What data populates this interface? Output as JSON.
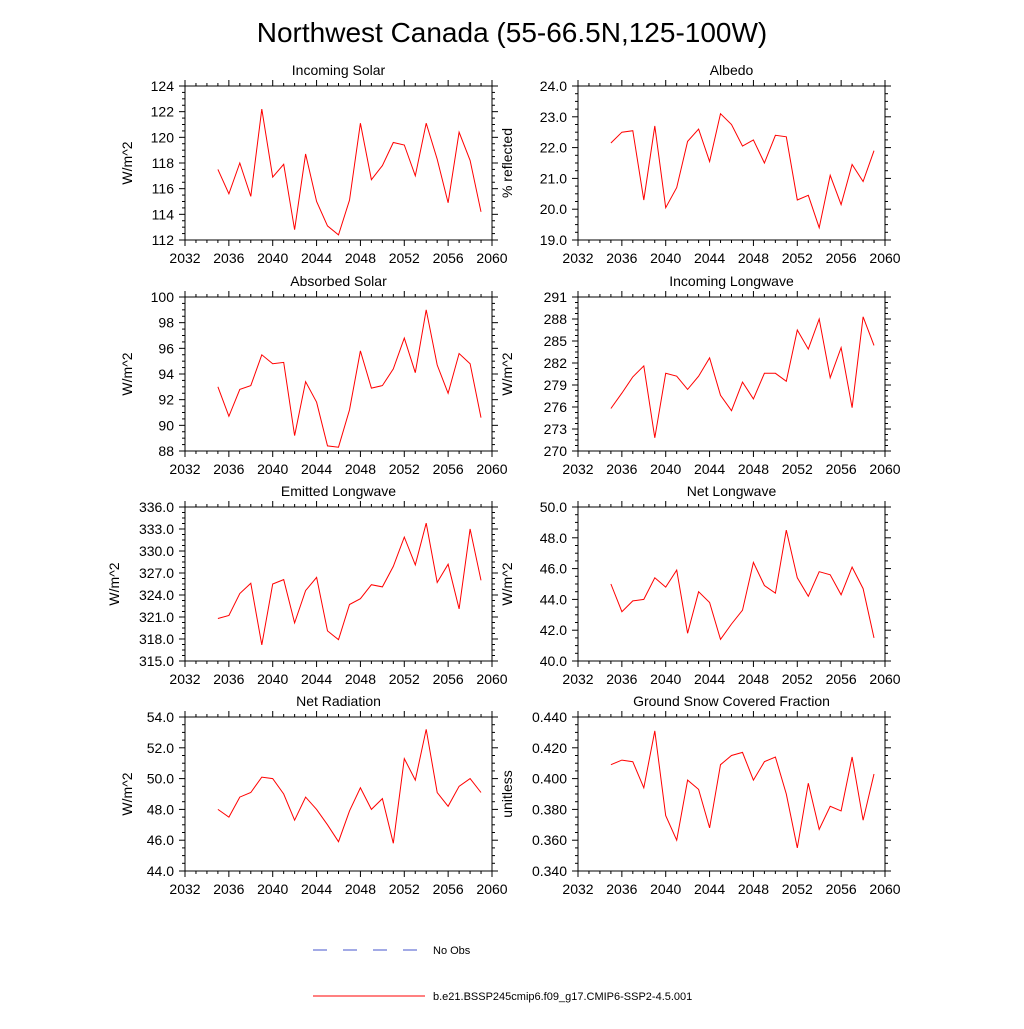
{
  "title": "Northwest Canada (55-66.5N,125-100W)",
  "colors": {
    "model": "#ff0000",
    "obs": "#4455cc",
    "axis": "#000000"
  },
  "legend": [
    {
      "label": "No Obs",
      "style": "dashed",
      "color": "#4455cc"
    },
    {
      "label": "b.e21.BSSP245cmip6.f09_g17.CMIP6-SSP2-4.5.001",
      "style": "solid",
      "color": "#ff0000"
    }
  ],
  "chart_data": [
    {
      "type": "line",
      "title": "Incoming Solar",
      "ylabel": "W/m^2",
      "xlim": [
        2032,
        2060
      ],
      "xticks": [
        "2032",
        "2036",
        "2040",
        "2044",
        "2048",
        "2052",
        "2056",
        "2060"
      ],
      "ylim": [
        112,
        124
      ],
      "yticks": [
        "112",
        "114",
        "116",
        "118",
        "120",
        "122",
        "124"
      ],
      "x": [
        2035,
        2036,
        2037,
        2038,
        2039,
        2040,
        2041,
        2042,
        2043,
        2044,
        2045,
        2046,
        2047,
        2048,
        2049,
        2050,
        2051,
        2052,
        2053,
        2054,
        2055,
        2056,
        2057,
        2058,
        2059
      ],
      "series": [
        {
          "values": [
            117.5,
            115.6,
            118.0,
            115.4,
            122.2,
            116.9,
            117.9,
            112.8,
            118.7,
            115.0,
            113.1,
            112.4,
            115.1,
            121.1,
            116.7,
            117.8,
            119.6,
            119.4,
            117.0,
            121.1,
            118.3,
            114.9,
            120.4,
            118.2,
            114.2
          ]
        }
      ]
    },
    {
      "type": "line",
      "title": "Albedo",
      "ylabel": "% reflected",
      "xlim": [
        2032,
        2060
      ],
      "xticks": [
        "2032",
        "2036",
        "2040",
        "2044",
        "2048",
        "2052",
        "2056",
        "2060"
      ],
      "ylim": [
        19.0,
        24.0
      ],
      "yticks": [
        "19.0",
        "20.0",
        "21.0",
        "22.0",
        "23.0",
        "24.0"
      ],
      "x": [
        2035,
        2036,
        2037,
        2038,
        2039,
        2040,
        2041,
        2042,
        2043,
        2044,
        2045,
        2046,
        2047,
        2048,
        2049,
        2050,
        2051,
        2052,
        2053,
        2054,
        2055,
        2056,
        2057,
        2058,
        2059
      ],
      "series": [
        {
          "values": [
            22.15,
            22.5,
            22.55,
            20.3,
            22.7,
            20.05,
            20.7,
            22.2,
            22.6,
            21.55,
            23.1,
            22.75,
            22.05,
            22.25,
            21.5,
            22.4,
            22.35,
            20.3,
            20.45,
            19.4,
            21.1,
            20.15,
            21.45,
            20.9,
            21.9
          ]
        }
      ]
    },
    {
      "type": "line",
      "title": "Absorbed Solar",
      "ylabel": "W/m^2",
      "xlim": [
        2032,
        2060
      ],
      "xticks": [
        "2032",
        "2036",
        "2040",
        "2044",
        "2048",
        "2052",
        "2056",
        "2060"
      ],
      "ylim": [
        88,
        100
      ],
      "yticks": [
        "88",
        "90",
        "92",
        "94",
        "96",
        "98",
        "100"
      ],
      "x": [
        2035,
        2036,
        2037,
        2038,
        2039,
        2040,
        2041,
        2042,
        2043,
        2044,
        2045,
        2046,
        2047,
        2048,
        2049,
        2050,
        2051,
        2052,
        2053,
        2054,
        2055,
        2056,
        2057,
        2058,
        2059
      ],
      "series": [
        {
          "values": [
            93.0,
            90.7,
            92.8,
            93.1,
            95.5,
            94.8,
            94.9,
            89.2,
            93.4,
            91.8,
            88.4,
            88.3,
            91.2,
            95.8,
            92.9,
            93.1,
            94.4,
            96.8,
            94.1,
            99.0,
            94.7,
            92.5,
            95.6,
            94.8,
            90.6
          ]
        }
      ]
    },
    {
      "type": "line",
      "title": "Incoming Longwave",
      "ylabel": "W/m^2",
      "xlim": [
        2032,
        2060
      ],
      "xticks": [
        "2032",
        "2036",
        "2040",
        "2044",
        "2048",
        "2052",
        "2056",
        "2060"
      ],
      "ylim": [
        270,
        291
      ],
      "yticks": [
        "270",
        "273",
        "276",
        "279",
        "282",
        "285",
        "288",
        "291"
      ],
      "x": [
        2035,
        2036,
        2037,
        2038,
        2039,
        2040,
        2041,
        2042,
        2043,
        2044,
        2045,
        2046,
        2047,
        2048,
        2049,
        2050,
        2051,
        2052,
        2053,
        2054,
        2055,
        2056,
        2057,
        2058,
        2059
      ],
      "series": [
        {
          "values": [
            275.8,
            277.9,
            280.1,
            281.6,
            271.8,
            280.6,
            280.2,
            278.4,
            280.2,
            282.7,
            277.6,
            275.5,
            279.4,
            277.1,
            280.6,
            280.6,
            279.5,
            286.5,
            283.9,
            288.0,
            280.0,
            284.1,
            275.9,
            288.3,
            284.4
          ]
        }
      ]
    },
    {
      "type": "line",
      "title": "Emitted Longwave",
      "ylabel": "W/m^2",
      "xlim": [
        2032,
        2060
      ],
      "xticks": [
        "2032",
        "2036",
        "2040",
        "2044",
        "2048",
        "2052",
        "2056",
        "2060"
      ],
      "ylim": [
        315.0,
        336.0
      ],
      "yticks": [
        "315.0",
        "318.0",
        "321.0",
        "324.0",
        "327.0",
        "330.0",
        "333.0",
        "336.0"
      ],
      "x": [
        2035,
        2036,
        2037,
        2038,
        2039,
        2040,
        2041,
        2042,
        2043,
        2044,
        2045,
        2046,
        2047,
        2048,
        2049,
        2050,
        2051,
        2052,
        2053,
        2054,
        2055,
        2056,
        2057,
        2058,
        2059
      ],
      "series": [
        {
          "values": [
            320.8,
            321.2,
            324.2,
            325.6,
            317.2,
            325.5,
            326.1,
            320.2,
            324.6,
            326.4,
            319.1,
            317.9,
            322.7,
            323.5,
            325.4,
            325.1,
            327.9,
            331.9,
            328.1,
            333.8,
            325.7,
            328.2,
            322.1,
            333.0,
            326.0
          ]
        }
      ]
    },
    {
      "type": "line",
      "title": "Net Longwave",
      "ylabel": "W/m^2",
      "xlim": [
        2032,
        2060
      ],
      "xticks": [
        "2032",
        "2036",
        "2040",
        "2044",
        "2048",
        "2052",
        "2056",
        "2060"
      ],
      "ylim": [
        40.0,
        50.0
      ],
      "yticks": [
        "40.0",
        "42.0",
        "44.0",
        "46.0",
        "48.0",
        "50.0"
      ],
      "x": [
        2035,
        2036,
        2037,
        2038,
        2039,
        2040,
        2041,
        2042,
        2043,
        2044,
        2045,
        2046,
        2047,
        2048,
        2049,
        2050,
        2051,
        2052,
        2053,
        2054,
        2055,
        2056,
        2057,
        2058,
        2059
      ],
      "series": [
        {
          "values": [
            45.0,
            43.2,
            43.9,
            44.0,
            45.4,
            44.8,
            45.9,
            41.8,
            44.5,
            43.8,
            41.4,
            42.4,
            43.3,
            46.4,
            44.9,
            44.4,
            48.5,
            45.4,
            44.2,
            45.8,
            45.6,
            44.3,
            46.1,
            44.7,
            41.5
          ]
        }
      ]
    },
    {
      "type": "line",
      "title": "Net Radiation",
      "ylabel": "W/m^2",
      "xlim": [
        2032,
        2060
      ],
      "xticks": [
        "2032",
        "2036",
        "2040",
        "2044",
        "2048",
        "2052",
        "2056",
        "2060"
      ],
      "ylim": [
        44.0,
        54.0
      ],
      "yticks": [
        "44.0",
        "46.0",
        "48.0",
        "50.0",
        "52.0",
        "54.0"
      ],
      "x": [
        2035,
        2036,
        2037,
        2038,
        2039,
        2040,
        2041,
        2042,
        2043,
        2044,
        2045,
        2046,
        2047,
        2048,
        2049,
        2050,
        2051,
        2052,
        2053,
        2054,
        2055,
        2056,
        2057,
        2058,
        2059
      ],
      "series": [
        {
          "values": [
            48.0,
            47.5,
            48.8,
            49.1,
            50.1,
            50.0,
            49.0,
            47.3,
            48.8,
            48.0,
            47.0,
            45.9,
            47.9,
            49.4,
            48.0,
            48.7,
            45.8,
            51.3,
            49.9,
            53.2,
            49.1,
            48.2,
            49.5,
            50.0,
            49.1
          ]
        }
      ]
    },
    {
      "type": "line",
      "title": "Ground Snow Covered Fraction",
      "ylabel": "unitless",
      "xlim": [
        2032,
        2060
      ],
      "xticks": [
        "2032",
        "2036",
        "2040",
        "2044",
        "2048",
        "2052",
        "2056",
        "2060"
      ],
      "ylim": [
        0.34,
        0.44
      ],
      "yticks": [
        "0.340",
        "0.360",
        "0.380",
        "0.400",
        "0.420",
        "0.440"
      ],
      "x": [
        2035,
        2036,
        2037,
        2038,
        2039,
        2040,
        2041,
        2042,
        2043,
        2044,
        2045,
        2046,
        2047,
        2048,
        2049,
        2050,
        2051,
        2052,
        2053,
        2054,
        2055,
        2056,
        2057,
        2058,
        2059
      ],
      "series": [
        {
          "values": [
            0.409,
            0.412,
            0.411,
            0.394,
            0.431,
            0.376,
            0.36,
            0.399,
            0.393,
            0.368,
            0.409,
            0.415,
            0.417,
            0.399,
            0.411,
            0.414,
            0.39,
            0.355,
            0.397,
            0.367,
            0.382,
            0.379,
            0.414,
            0.373,
            0.403
          ]
        }
      ]
    }
  ]
}
